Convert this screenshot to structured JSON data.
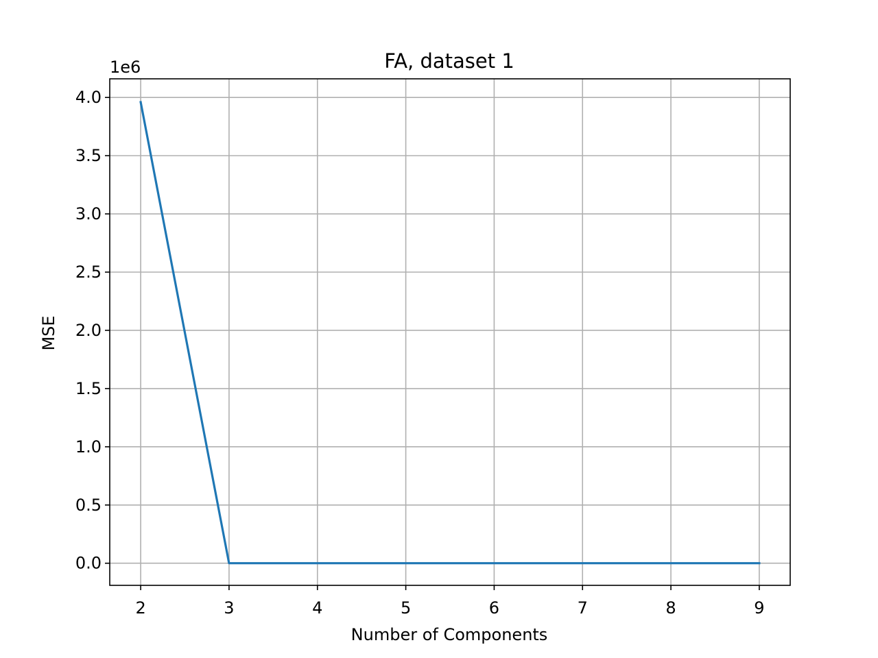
{
  "chart_data": {
    "type": "line",
    "title": "FA, dataset 1",
    "xlabel": "Number of Components",
    "ylabel": "MSE",
    "y_offset_label": "1e6",
    "x_ticks": [
      2,
      3,
      4,
      5,
      6,
      7,
      8,
      9
    ],
    "x_tick_labels": [
      "2",
      "3",
      "4",
      "5",
      "6",
      "7",
      "8",
      "9"
    ],
    "y_ticks": [
      0,
      500000,
      1000000,
      1500000,
      2000000,
      2500000,
      3000000,
      3500000,
      4000000
    ],
    "y_tick_labels": [
      "0.0",
      "0.5",
      "1.0",
      "1.5",
      "2.0",
      "2.5",
      "3.0",
      "3.5",
      "4.0"
    ],
    "xlim": [
      1.65,
      9.35
    ],
    "ylim": [
      -190000,
      4160000
    ],
    "grid": true,
    "legend": false,
    "series": [
      {
        "x": [
          2,
          3,
          4,
          5,
          6,
          7,
          8,
          9
        ],
        "values": [
          3960000,
          0,
          0,
          0,
          0,
          0,
          0,
          0
        ],
        "color": "#1f77b4"
      }
    ]
  }
}
